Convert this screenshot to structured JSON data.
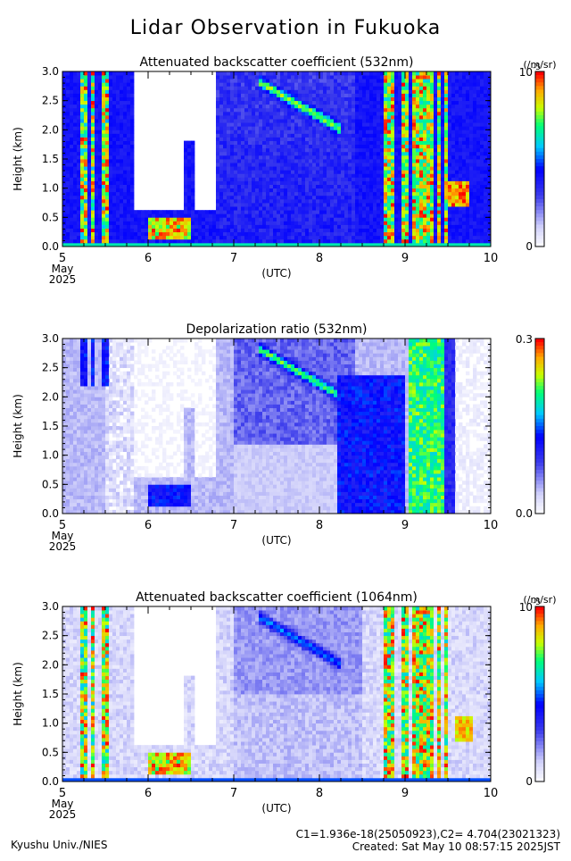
{
  "title": "Lidar Observation in Fukuoka",
  "x_axis": {
    "ticks": [
      "5",
      "6",
      "7",
      "8",
      "9",
      "10"
    ],
    "month": "May",
    "year": "2025",
    "unit": "(UTC)"
  },
  "footer": {
    "left": "Kyushu Univ./NIES",
    "calib": "C1=1.936e-18(25050923),C2= 4.704(23021323)",
    "created": "Created: Sat May 10 08:57:15 2025JST"
  },
  "colors": {
    "scale": [
      "#ffffff",
      "#0000ff",
      "#00ffff",
      "#00ff00",
      "#ffff00",
      "#ff0000"
    ]
  },
  "chart_data": [
    {
      "type": "heatmap",
      "title": "Attenuated backscatter coefficient (532nm)",
      "ylabel": "Height (km)",
      "xlabel": "(UTC)",
      "xlim": [
        5,
        10
      ],
      "ylim": [
        0,
        3
      ],
      "x_ticks": [
        "5",
        "6",
        "7",
        "8",
        "9",
        "10"
      ],
      "y_ticks": [
        "0.0",
        "0.5",
        "1.0",
        "1.5",
        "2.0",
        "2.5",
        "3.0"
      ],
      "colorbar": {
        "min": "0",
        "max": "10",
        "max_exp": "-5",
        "unit": "(/m/sr)"
      },
      "pattern": "backscatter"
    },
    {
      "type": "heatmap",
      "title": "Depolarization ratio (532nm)",
      "ylabel": "Height (km)",
      "xlabel": "(UTC)",
      "xlim": [
        5,
        10
      ],
      "ylim": [
        0,
        3
      ],
      "x_ticks": [
        "5",
        "6",
        "7",
        "8",
        "9",
        "10"
      ],
      "y_ticks": [
        "0.0",
        "0.5",
        "1.0",
        "1.5",
        "2.0",
        "2.5",
        "3.0"
      ],
      "colorbar": {
        "min": "0.0",
        "max": "0.3",
        "max_exp": "",
        "unit": ""
      },
      "pattern": "depol"
    },
    {
      "type": "heatmap",
      "title": "Attenuated backscatter coefficient (1064nm)",
      "ylabel": "Height (km)",
      "xlabel": "(UTC)",
      "xlim": [
        5,
        10
      ],
      "ylim": [
        0,
        3
      ],
      "x_ticks": [
        "5",
        "6",
        "7",
        "8",
        "9",
        "10"
      ],
      "y_ticks": [
        "0.0",
        "0.5",
        "1.0",
        "1.5",
        "2.0",
        "2.5",
        "3.0"
      ],
      "colorbar": {
        "min": "0",
        "max": "10",
        "max_exp": "-5",
        "unit": "(/m/sr)"
      },
      "pattern": "b1064"
    }
  ]
}
